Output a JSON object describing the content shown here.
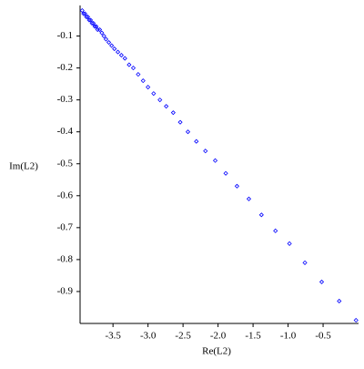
{
  "chart_data": {
    "type": "scatter",
    "xlabel": "Re(L2)",
    "ylabel": "Im(L2)",
    "color": "#0000ff",
    "marker": "diamond",
    "x": [
      -0.03,
      -0.27,
      -0.52,
      -0.76,
      -0.98,
      -1.18,
      -1.38,
      -1.56,
      -1.73,
      -1.89,
      -2.04,
      -2.18,
      -2.31,
      -2.43,
      -2.54,
      -2.64,
      -2.74,
      -2.83,
      -2.92,
      -3.0,
      -3.07,
      -3.14,
      -3.21,
      -3.27,
      -3.33,
      -3.38,
      -3.43,
      -3.48,
      -3.52,
      -3.56,
      -3.6,
      -3.63,
      -3.66,
      -3.69,
      -3.72,
      -3.74,
      -3.76,
      -3.78,
      -3.8,
      -3.82,
      -3.84,
      -3.86,
      -3.88,
      -3.9,
      -3.92,
      -3.94
    ],
    "values": [
      -0.99,
      -0.93,
      -0.87,
      -0.81,
      -0.75,
      -0.71,
      -0.66,
      -0.61,
      -0.57,
      -0.53,
      -0.49,
      -0.46,
      -0.43,
      -0.4,
      -0.37,
      -0.34,
      -0.32,
      -0.3,
      -0.28,
      -0.26,
      -0.24,
      -0.22,
      -0.2,
      -0.19,
      -0.17,
      -0.16,
      -0.15,
      -0.14,
      -0.13,
      -0.12,
      -0.11,
      -0.1,
      -0.09,
      -0.08,
      -0.08,
      -0.07,
      -0.07,
      -0.06,
      -0.06,
      -0.05,
      -0.05,
      -0.04,
      -0.04,
      -0.03,
      -0.03,
      -0.02
    ],
    "xlim": [
      -3.97,
      -0.02
    ],
    "ylim": [
      -1.0,
      -0.01
    ],
    "xticks": [
      -3.5,
      {
        "value": -3.0,
        "label": "-3.0"
      },
      -2.5,
      {
        "value": -2.0,
        "label": "-2.0"
      },
      -1.5,
      {
        "value": -1.0,
        "label": "-1.0"
      },
      -0.5
    ],
    "yticks": [
      -0.1,
      -0.2,
      -0.3,
      -0.4,
      -0.5,
      -0.6,
      -0.7,
      -0.8,
      -0.9
    ]
  }
}
